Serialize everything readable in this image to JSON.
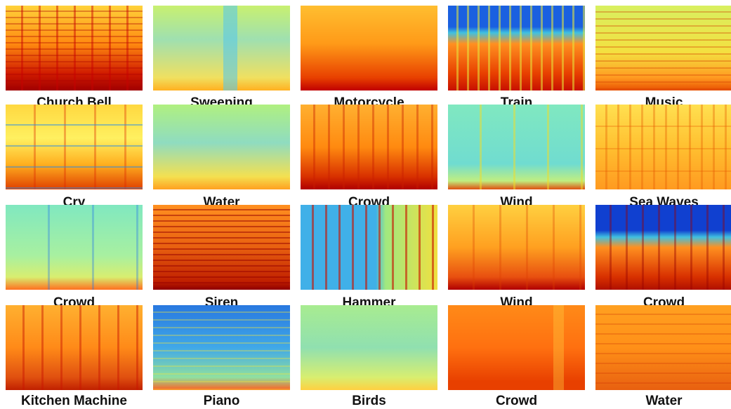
{
  "tiles": [
    {
      "label": "Church Bell"
    },
    {
      "label": "Sweeping"
    },
    {
      "label": "Motorcycle"
    },
    {
      "label": "Train"
    },
    {
      "label": "Music"
    },
    {
      "label": "Cry"
    },
    {
      "label": "Water"
    },
    {
      "label": "Crowd"
    },
    {
      "label": "Wind"
    },
    {
      "label": "Sea Waves"
    },
    {
      "label": "Crowd"
    },
    {
      "label": "Siren"
    },
    {
      "label": "Hammer"
    },
    {
      "label": "Wind"
    },
    {
      "label": "Crowd"
    },
    {
      "label": "Kitchen Machine"
    },
    {
      "label": "Piano"
    },
    {
      "label": "Birds"
    },
    {
      "label": "Crowd"
    },
    {
      "label": "Water"
    }
  ]
}
